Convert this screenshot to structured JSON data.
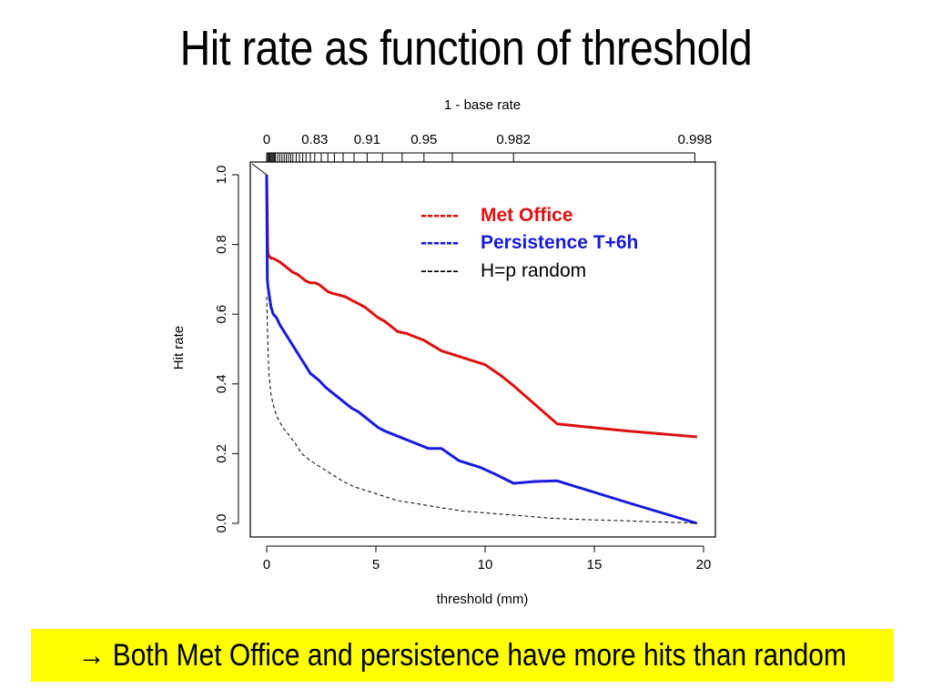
{
  "slide": {
    "title": "Hit rate as function of threshold",
    "callout_arrow": "→",
    "callout_text": "Both Met Office and persistence have more hits than random"
  },
  "chart_data": {
    "type": "line",
    "title": "",
    "xlabel": "threshold (mm)",
    "ylabel": "Hit rate",
    "top_axis_label": "1 - base rate",
    "xlim": [
      0,
      20
    ],
    "ylim": [
      0,
      1
    ],
    "x_ticks": [
      "0",
      "5",
      "10",
      "15",
      "20"
    ],
    "y_ticks": [
      "0.0",
      "0.2",
      "0.4",
      "0.6",
      "0.8",
      "1.0"
    ],
    "top_ticks": [
      {
        "label": "0",
        "threshold": 0
      },
      {
        "label": "0.83",
        "threshold": 2.2
      },
      {
        "label": "0.91",
        "threshold": 4.6
      },
      {
        "label": "0.95",
        "threshold": 7.2
      },
      {
        "label": "0.982",
        "threshold": 11.3
      },
      {
        "label": "0.998",
        "threshold": 19.6
      }
    ],
    "top_minor_ticks": [
      0,
      0.05,
      0.1,
      0.15,
      0.2,
      0.25,
      0.3,
      0.35,
      0.4,
      0.5,
      0.6,
      0.7,
      0.8,
      0.9,
      1.0,
      1.1,
      1.2,
      1.35,
      1.5,
      1.65,
      1.8,
      2.0,
      2.2,
      2.5,
      2.8,
      3.1,
      3.5,
      4.0,
      4.6,
      5.3,
      6.2,
      7.2,
      8.5,
      11.3,
      19.6
    ],
    "legend_placement": "top-right",
    "grid": false,
    "series": [
      {
        "name": "Met Office",
        "legend_dash": "------",
        "color": "#dd1111",
        "x": [
          0,
          0.05,
          0.1,
          0.15,
          0.2,
          0.3,
          0.45,
          0.6,
          0.8,
          1.0,
          1.2,
          1.4,
          1.6,
          1.8,
          2.0,
          2.2,
          2.4,
          2.6,
          2.8,
          3.0,
          3.3,
          3.6,
          3.9,
          4.2,
          4.5,
          4.8,
          5.1,
          5.4,
          5.7,
          6.0,
          6.4,
          6.8,
          7.2,
          7.6,
          8.0,
          9.0,
          10.0,
          10.7,
          11.3,
          12.3,
          13.3,
          16.5,
          19.7
        ],
        "y": [
          1.0,
          0.78,
          0.765,
          0.765,
          0.76,
          0.76,
          0.755,
          0.75,
          0.74,
          0.73,
          0.72,
          0.715,
          0.705,
          0.695,
          0.69,
          0.69,
          0.685,
          0.675,
          0.665,
          0.66,
          0.655,
          0.65,
          0.64,
          0.63,
          0.62,
          0.605,
          0.59,
          0.58,
          0.565,
          0.55,
          0.545,
          0.535,
          0.525,
          0.51,
          0.495,
          0.475,
          0.455,
          0.425,
          0.395,
          0.34,
          0.285,
          0.265,
          0.248
        ]
      },
      {
        "name": "Persistence T+6h",
        "legend_dash": "------",
        "color": "#1a1adb",
        "x": [
          0,
          0.03,
          0.06,
          0.1,
          0.15,
          0.2,
          0.3,
          0.45,
          0.6,
          0.8,
          1.0,
          1.2,
          1.4,
          1.6,
          1.8,
          2.0,
          2.2,
          2.4,
          2.7,
          3.0,
          3.3,
          3.6,
          3.9,
          4.2,
          4.5,
          4.8,
          5.1,
          5.4,
          5.8,
          6.2,
          6.6,
          7.0,
          7.4,
          8.0,
          8.8,
          9.8,
          10.5,
          11.3,
          12.3,
          13.3,
          16.5,
          19.7
        ],
        "y": [
          1.0,
          0.7,
          0.68,
          0.66,
          0.64,
          0.62,
          0.6,
          0.59,
          0.57,
          0.55,
          0.53,
          0.51,
          0.49,
          0.47,
          0.45,
          0.43,
          0.42,
          0.41,
          0.39,
          0.375,
          0.36,
          0.345,
          0.33,
          0.32,
          0.305,
          0.29,
          0.275,
          0.265,
          0.255,
          0.245,
          0.235,
          0.225,
          0.215,
          0.215,
          0.18,
          0.16,
          0.14,
          0.115,
          0.12,
          0.122,
          0.06,
          0.0
        ]
      },
      {
        "name": "H=p random",
        "legend_dash": "------",
        "color": "#000000",
        "x": [
          0,
          0.05,
          0.1,
          0.2,
          0.3,
          0.45,
          0.6,
          0.8,
          1.0,
          1.3,
          1.6,
          2.0,
          2.5,
          3.0,
          3.5,
          4.0,
          4.5,
          5.0,
          5.5,
          6.0,
          7.0,
          8.0,
          9.0,
          10.0,
          11.0,
          12.0,
          13.0,
          14.0,
          15.0,
          16.0,
          17.0,
          18.0,
          19.0,
          19.7
        ],
        "y": [
          0.65,
          0.52,
          0.43,
          0.37,
          0.34,
          0.31,
          0.29,
          0.27,
          0.255,
          0.23,
          0.2,
          0.18,
          0.16,
          0.14,
          0.12,
          0.105,
          0.095,
          0.085,
          0.075,
          0.065,
          0.055,
          0.045,
          0.035,
          0.03,
          0.025,
          0.02,
          0.015,
          0.012,
          0.01,
          0.008,
          0.006,
          0.004,
          0.002,
          0.0
        ]
      }
    ]
  }
}
